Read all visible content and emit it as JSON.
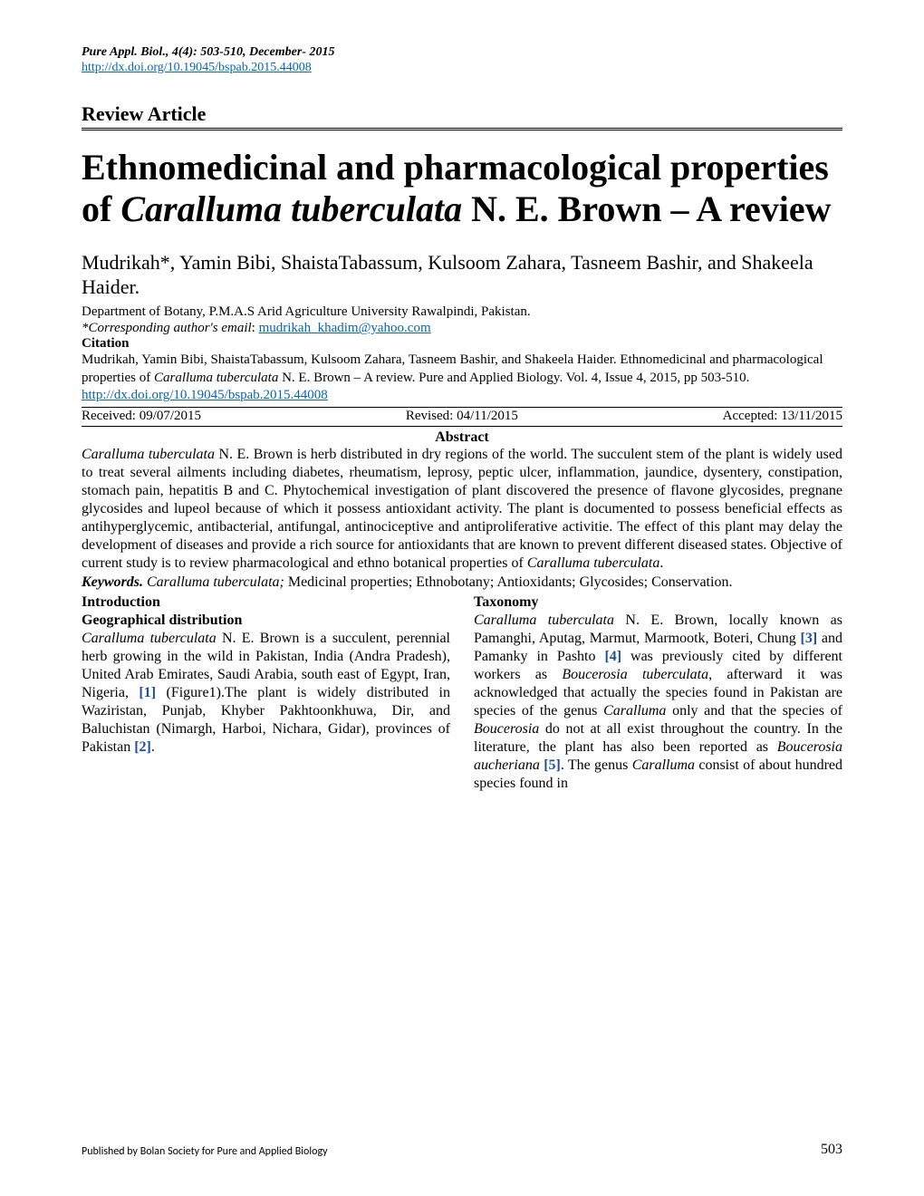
{
  "header": {
    "journal": "Pure Appl. Biol., 4(4): 503-510, December- 2015",
    "doi_url": "http://dx.doi.org/10.19045/bspab.2015.44008"
  },
  "article_type": "Review Article",
  "title_parts": {
    "p1": "Ethnomedicinal and pharmacological properties of ",
    "italic": "Caralluma tuberculata",
    "p2": " N. E. Brown – A review"
  },
  "authors": "Mudrikah*, Yamin Bibi, ShaistaTabassum, Kulsoom Zahara, Tasneem Bashir, and Shakeela Haider.",
  "affiliation": "Department of Botany, P.M.A.S Arid Agriculture University Rawalpindi, Pakistan.",
  "corresponding": {
    "label": "*Corresponding author's email",
    "sep": ": ",
    "email": "mudrikah_khadim@yahoo.com"
  },
  "citation": {
    "label": "Citation",
    "t1": "Mudrikah, Yamin Bibi, ShaistaTabassum, Kulsoom Zahara, Tasneem Bashir, and Shakeela Haider. Ethnomedicinal and pharmacological properties of ",
    "it1": "Caralluma tuberculata",
    "t2": " N. E. Brown – A review. Pure and Applied Biology. Vol. 4, Issue 4, 2015, pp 503-510. ",
    "link": "http://dx.doi.org/10.19045/bspab.2015.44008"
  },
  "dates": {
    "received": "Received: 09/07/2015",
    "revised": "Revised: 04/11/2015",
    "accepted": "Accepted: 13/11/2015"
  },
  "abstract": {
    "label": "Abstract",
    "it1": "Caralluma tuberculata",
    "t1": " N. E. Brown is herb distributed in dry regions of the world. The succulent stem of the plant is widely used to treat several ailments including diabetes, rheumatism, leprosy, peptic ulcer, inflammation, jaundice, dysentery, constipation, stomach pain, hepatitis B and C. Phytochemical investigation of plant discovered the presence of flavone glycosides, pregnane glycosides and lupeol because of which it possess antioxidant activity. The plant is documented to possess beneficial effects as antihyperglycemic, antibacterial, antifungal, antinociceptive and antiproliferative activitie. The effect of this plant may delay the development of diseases and provide a rich source for antioxidants that are known to prevent different diseased states. Objective of current study is to review pharmacological and ethno botanical properties of ",
    "it2": "Caralluma tuberculata",
    "t2": "."
  },
  "keywords": {
    "label": "Keywords.",
    "kw_italic": " Caralluma tuberculata;",
    "rest": " Medicinal properties; Ethnobotany; Antioxidants; Glycosides; Conservation."
  },
  "left_col": {
    "h1": "Introduction",
    "h2": "Geographical distribution",
    "it1": "Caralluma tuberculata",
    "t1": " N. E. Brown is a succulent, perennial herb growing in the wild in Pakistan, India (Andra Pradesh), United Arab Emirates, Saudi Arabia, south east of Egypt, Iran, Nigeria, ",
    "ref1": "[1]",
    "t2": " (Figure1).The plant is widely distributed in Waziristan, Punjab, Khyber Pakhtoonkhuwa, Dir, and Baluchistan (Nimargh, Harboi, Nichara, Gidar), provinces of Pakistan ",
    "ref2": "[2]",
    "t3": "."
  },
  "right_col": {
    "h1": "Taxonomy",
    "it1": "Caralluma tuberculata",
    "t1": " N. E. Brown, locally known as Pamanghi, Aputag, Marmut, Marmootk, Boteri, Chung ",
    "ref1": "[3]",
    "t2": " and Pamanky in Pashto ",
    "ref2": "[4]",
    "t3": " was previously cited by different workers as ",
    "it2": "Boucerosia tuberculata",
    "t4": ", afterward it was acknowledged that actually the species found in Pakistan are species of the genus ",
    "it3": "Caralluma",
    "t5": " only and that the species of ",
    "it4": "Boucerosia",
    "t6": " do not at all exist throughout the country. In the literature, the plant has also been reported as ",
    "it5": "Boucerosia aucheriana",
    "t7": " ",
    "ref3": "[5]",
    "t8": ". The genus ",
    "it6": "Caralluma",
    "t9": " consist of about hundred species found in"
  },
  "footer": {
    "publisher": "Published by Bolan Society for Pure and Applied Biology",
    "page": "503"
  },
  "colors": {
    "link": "#0563c1",
    "ref": "#1f4e9c",
    "text": "#000000",
    "background": "#ffffff"
  },
  "typography": {
    "body_font": "Times New Roman",
    "title_size_pt": 30,
    "authors_size_pt": 17,
    "body_size_pt": 12
  }
}
